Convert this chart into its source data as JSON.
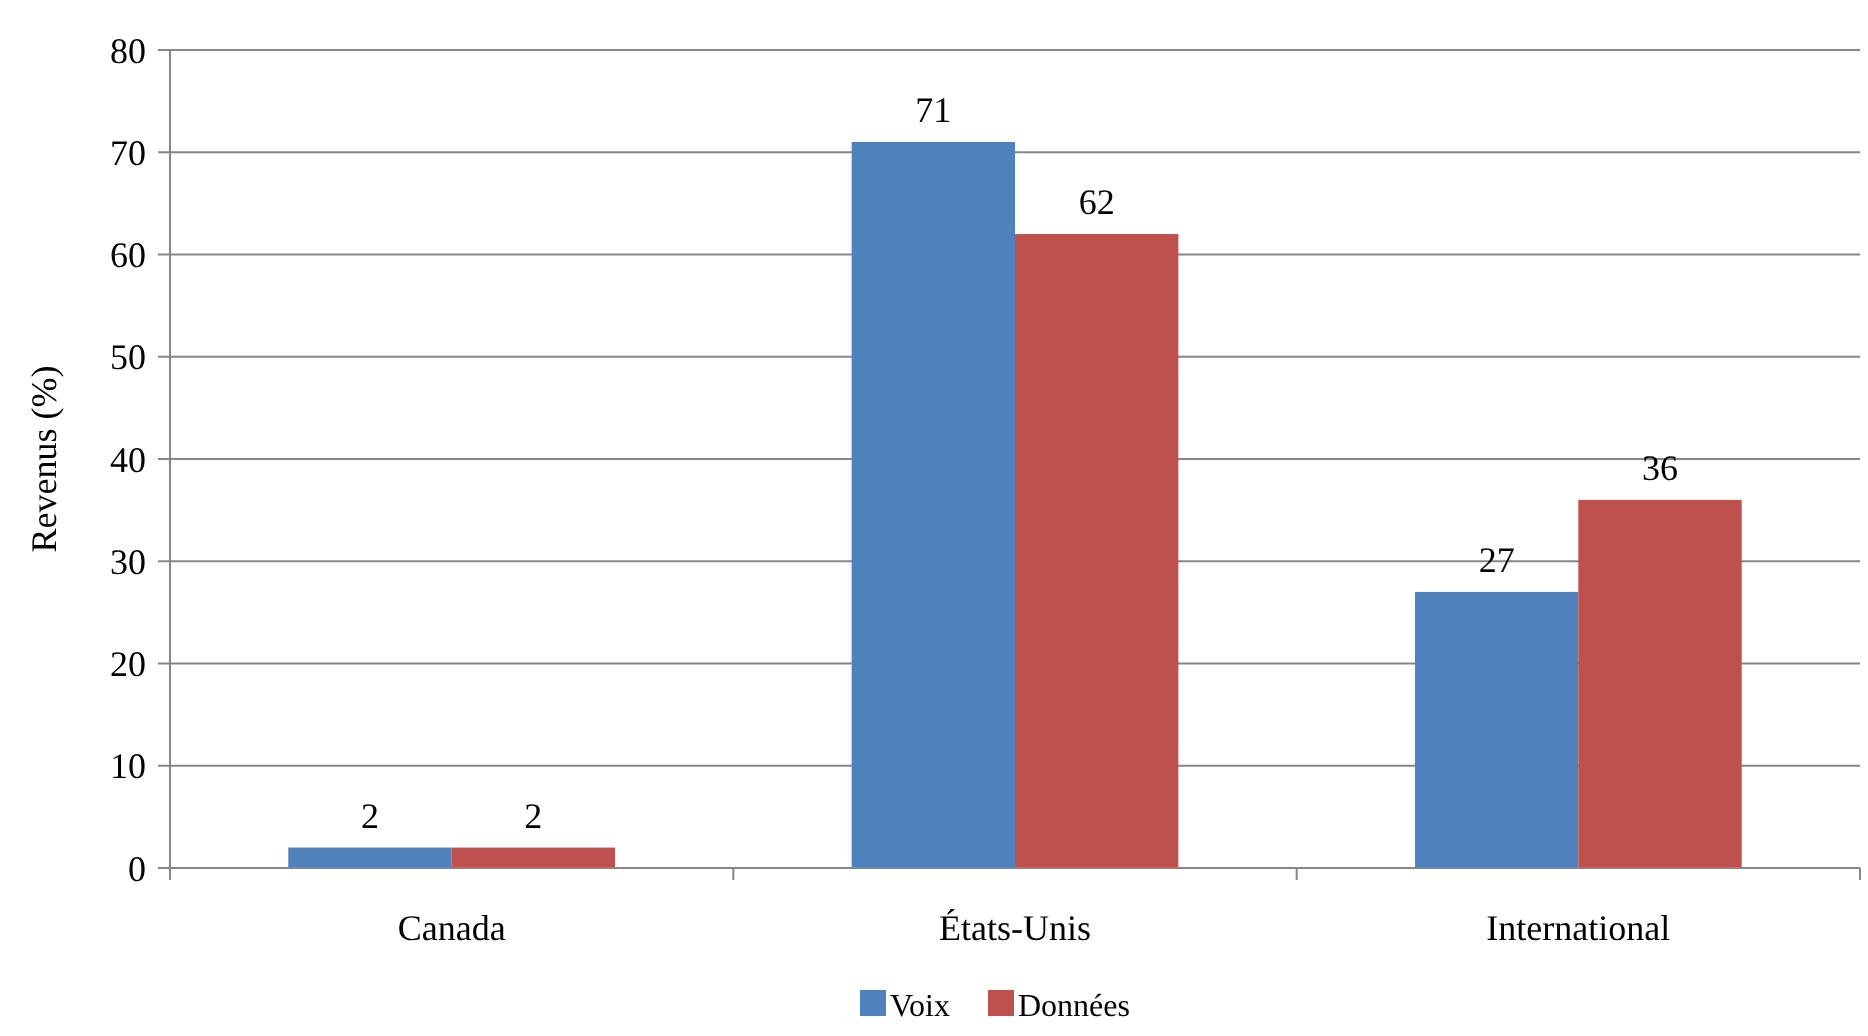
{
  "chart_data": {
    "type": "bar",
    "ylabel": "Revenus (%)",
    "categories": [
      "Canada",
      "États-Unis",
      "International"
    ],
    "series": [
      {
        "name": "Voix",
        "color": "#4f81bd",
        "values": [
          2,
          71,
          27
        ]
      },
      {
        "name": "Données",
        "color": "#c0504d",
        "values": [
          2,
          62,
          36
        ]
      }
    ],
    "ylim": [
      0,
      80
    ],
    "yticks": [
      0,
      10,
      20,
      30,
      40,
      50,
      60,
      70,
      80
    ],
    "grid": "y",
    "legend": "bottom",
    "data_labels": true
  }
}
